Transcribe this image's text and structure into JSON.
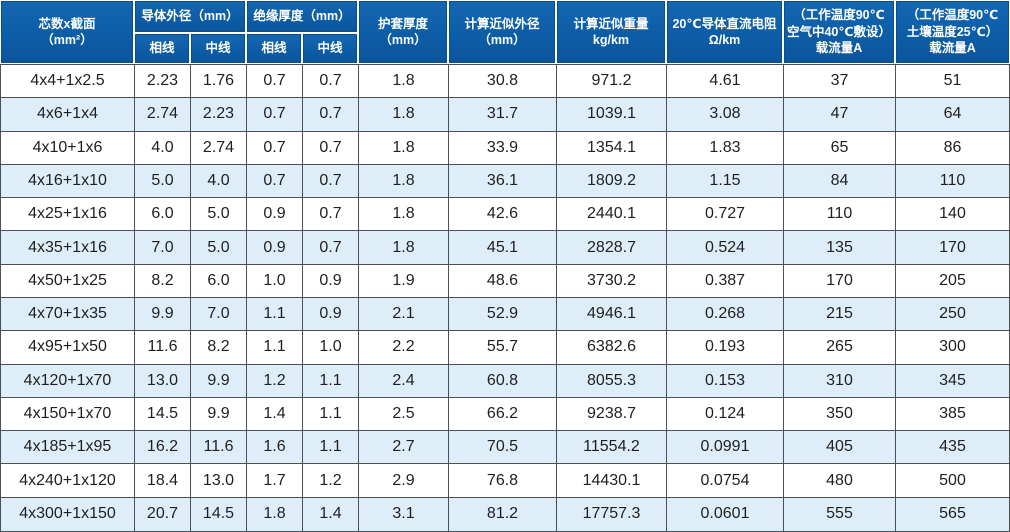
{
  "table": {
    "header": {
      "core": {
        "lines": [
          "芯数x截面",
          "（mm²）"
        ]
      },
      "conductor_group": "导体外径（mm）",
      "insulation_group": "绝缘厚度（mm）",
      "sub": [
        "相线",
        "中线"
      ],
      "sheath": {
        "lines": [
          "护套厚度",
          "（mm）"
        ]
      },
      "od": {
        "lines": [
          "计算近似外径",
          "（mm）"
        ]
      },
      "weight": {
        "lines": [
          "计算近似重量",
          "kg/km"
        ]
      },
      "resistance": {
        "lines": [
          "20℃导体直流电阻",
          "Ω/km"
        ]
      },
      "ampacity_air": {
        "lines": [
          "（工作温度90℃",
          "空气中40℃敷设）",
          "载流量A"
        ]
      },
      "ampacity_soil": {
        "lines": [
          "（工作温度90℃",
          "土壤温度25℃）",
          "载流量A"
        ]
      }
    },
    "rows": [
      [
        "4x4+1x2.5",
        "2.23",
        "1.76",
        "0.7",
        "0.7",
        "1.8",
        "30.8",
        "971.2",
        "4.61",
        "37",
        "51"
      ],
      [
        "4x6+1x4",
        "2.74",
        "2.23",
        "0.7",
        "0.7",
        "1.8",
        "31.7",
        "1039.1",
        "3.08",
        "47",
        "64"
      ],
      [
        "4x10+1x6",
        "4.0",
        "2.74",
        "0.7",
        "0.7",
        "1.8",
        "33.9",
        "1354.1",
        "1.83",
        "65",
        "86"
      ],
      [
        "4x16+1x10",
        "5.0",
        "4.0",
        "0.7",
        "0.7",
        "1.8",
        "36.1",
        "1809.2",
        "1.15",
        "84",
        "110"
      ],
      [
        "4x25+1x16",
        "6.0",
        "5.0",
        "0.9",
        "0.7",
        "1.8",
        "42.6",
        "2440.1",
        "0.727",
        "110",
        "140"
      ],
      [
        "4x35+1x16",
        "7.0",
        "5.0",
        "0.9",
        "0.7",
        "1.8",
        "45.1",
        "2828.7",
        "0.524",
        "135",
        "170"
      ],
      [
        "4x50+1x25",
        "8.2",
        "6.0",
        "1.0",
        "0.9",
        "1.9",
        "48.6",
        "3730.2",
        "0.387",
        "170",
        "205"
      ],
      [
        "4x70+1x35",
        "9.9",
        "7.0",
        "1.1",
        "0.9",
        "2.1",
        "52.9",
        "4946.1",
        "0.268",
        "215",
        "250"
      ],
      [
        "4x95+1x50",
        "11.6",
        "8.2",
        "1.1",
        "1.0",
        "2.2",
        "55.7",
        "6382.6",
        "0.193",
        "265",
        "300"
      ],
      [
        "4x120+1x70",
        "13.0",
        "9.9",
        "1.2",
        "1.1",
        "2.4",
        "60.8",
        "8055.3",
        "0.153",
        "310",
        "345"
      ],
      [
        "4x150+1x70",
        "14.5",
        "9.9",
        "1.4",
        "1.1",
        "2.5",
        "66.2",
        "9238.7",
        "0.124",
        "350",
        "385"
      ],
      [
        "4x185+1x95",
        "16.2",
        "11.6",
        "1.6",
        "1.1",
        "2.7",
        "70.5",
        "11554.2",
        "0.0991",
        "405",
        "435"
      ],
      [
        "4x240+1x120",
        "18.4",
        "13.0",
        "1.7",
        "1.2",
        "2.9",
        "76.8",
        "14430.1",
        "0.0754",
        "480",
        "500"
      ],
      [
        "4x300+1x150",
        "20.7",
        "14.5",
        "1.8",
        "1.4",
        "3.1",
        "81.2",
        "17757.3",
        "0.0601",
        "555",
        "565"
      ]
    ]
  },
  "colors": {
    "header_bg": "#0d5da6",
    "header_bg_light": "#1467b1",
    "header_inner_border": "#0a4e8c",
    "header_text": "#ffffff",
    "grid_line": "#4f4f4f",
    "row_stripe": "#ddeef8",
    "row_plain": "#ffffff",
    "body_text": "#1f1f1f"
  }
}
